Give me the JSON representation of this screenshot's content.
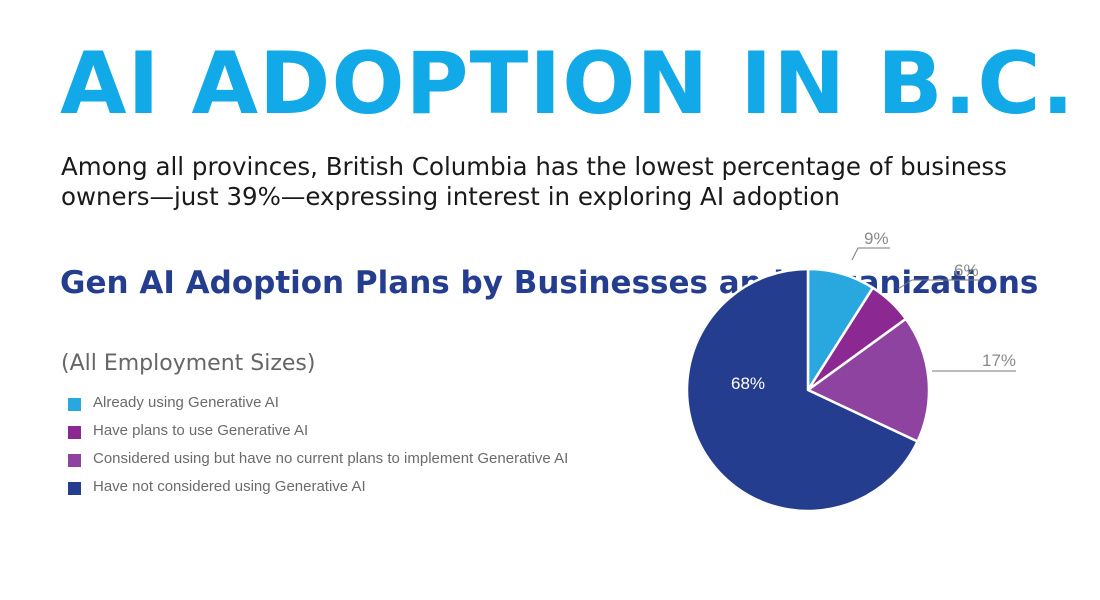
{
  "header": {
    "title": "AI ADOPTION IN B.C.",
    "subtitle": "Among all provinces, British Columbia has the lowest percentage of business owners—just 39%—expressing interest in exploring AI adoption"
  },
  "chart_data": {
    "type": "pie",
    "title": "Gen AI Adoption Plans by Businesses and Organizations",
    "subtitle": "(All Employment Sizes)",
    "slices": [
      {
        "label": "Already using Generative AI",
        "value": 9,
        "display": "9%",
        "color": "#29a8e0"
      },
      {
        "label": "Have plans to use Generative AI",
        "value": 6,
        "display": "6%",
        "color": "#8c2891"
      },
      {
        "label": "Considered using but have no current plans to implement Generative AI",
        "value": 17,
        "display": "17%",
        "color": "#8e43a0"
      },
      {
        "label": "Have not considered using Generative AI",
        "value": 68,
        "display": "68%",
        "color": "#253d8f"
      }
    ],
    "legend_position": "left"
  }
}
